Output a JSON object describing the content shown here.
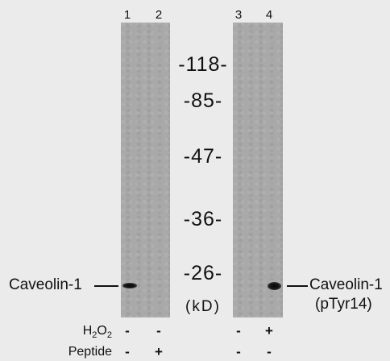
{
  "lane_numbers": [
    "1",
    "2",
    "3",
    "4"
  ],
  "mw_markers": [
    "-118-",
    "-85-",
    "-47-",
    "-36-",
    "-26-"
  ],
  "unit": "(kD)",
  "left_band_label": "Caveolin-1",
  "right_band_label_line1": "Caveolin-1",
  "right_band_label_line2": "(pTyr14)",
  "treatments": [
    {
      "label": "H2O2",
      "lanes": [
        "-",
        "-",
        "-",
        "+"
      ]
    },
    {
      "label": "Peptide",
      "lanes": [
        "-",
        "+",
        "-",
        "-"
      ]
    }
  ],
  "colors": {
    "background": "#ebebeb",
    "membrane": "#a9a9a9",
    "band": "#111111"
  }
}
